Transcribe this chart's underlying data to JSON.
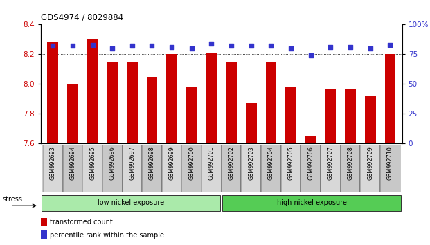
{
  "title": "GDS4974 / 8029884",
  "samples": [
    "GSM992693",
    "GSM992694",
    "GSM992695",
    "GSM992696",
    "GSM992697",
    "GSM992698",
    "GSM992699",
    "GSM992700",
    "GSM992701",
    "GSM992702",
    "GSM992703",
    "GSM992704",
    "GSM992705",
    "GSM992706",
    "GSM992707",
    "GSM992708",
    "GSM992709",
    "GSM992710"
  ],
  "bar_values": [
    8.28,
    8.0,
    8.3,
    8.15,
    8.15,
    8.05,
    8.2,
    7.98,
    8.21,
    8.15,
    7.87,
    8.15,
    7.98,
    7.65,
    7.97,
    7.97,
    7.92,
    8.2
  ],
  "percentile_values": [
    82,
    82,
    83,
    80,
    82,
    82,
    81,
    80,
    84,
    82,
    82,
    82,
    80,
    74,
    81,
    81,
    80,
    83
  ],
  "ylim_left": [
    7.6,
    8.4
  ],
  "ylim_right": [
    0,
    100
  ],
  "yticks_left": [
    7.6,
    7.8,
    8.0,
    8.2,
    8.4
  ],
  "yticks_right": [
    0,
    25,
    50,
    75,
    100
  ],
  "bar_color": "#cc0000",
  "dot_color": "#3333cc",
  "bar_bottom": 7.6,
  "group1_label": "low nickel exposure",
  "group1_count": 9,
  "group2_label": "high nickel exposure",
  "group2_count": 9,
  "group1_color": "#aaeaaa",
  "group2_color": "#55cc55",
  "stress_label": "stress",
  "legend_bar_label": "transformed count",
  "legend_dot_label": "percentile rank within the sample",
  "bg_color": "#ffffff",
  "plot_bg": "#ffffff",
  "tick_label_color_left": "#cc0000",
  "tick_label_color_right": "#3333cc",
  "grid_color": "#555555",
  "xlabel_bg": "#cccccc"
}
